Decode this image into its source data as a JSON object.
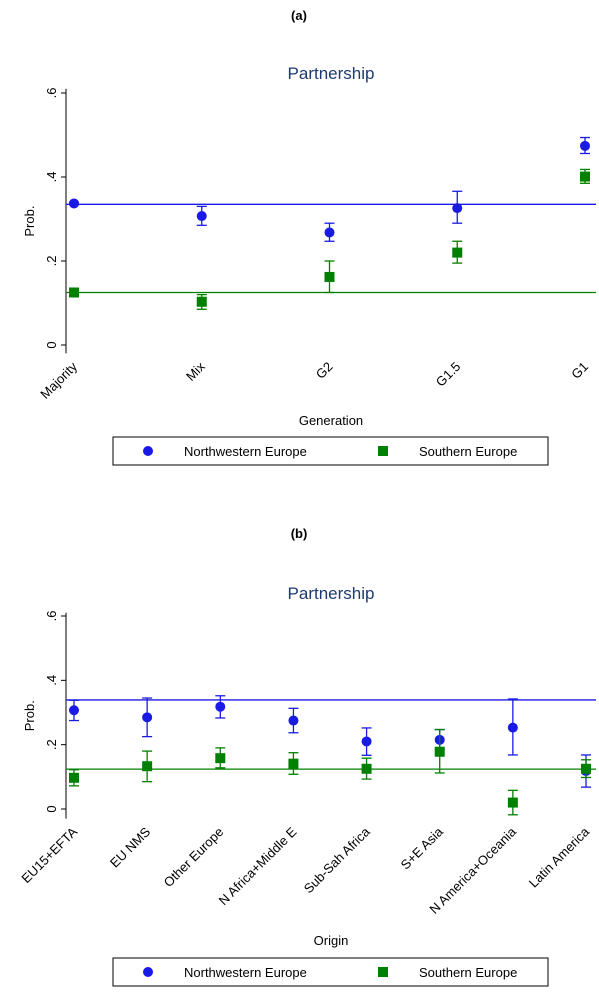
{
  "chart_data": [
    {
      "type": "errorbar",
      "panel_label": "(a)",
      "title": "Partnership",
      "x_title": "Generation",
      "y_title": "Prob.",
      "categories": [
        "Majority",
        "Mix",
        "G2",
        "G1.5",
        "G1"
      ],
      "ylim": [
        -0.02,
        0.61
      ],
      "yticks": [
        0,
        {
          "value": 0.2,
          "label": ".2"
        },
        {
          "value": 0.4,
          "label": ".4"
        },
        {
          "value": 0.6,
          "label": ".6"
        }
      ],
      "series": [
        {
          "name": "Northwestern Europe",
          "color": "#1a1ae6",
          "marker": "circle",
          "reference": 0.335,
          "values": [
            0.337,
            0.307,
            0.268,
            0.326,
            0.474
          ],
          "ci_low": [
            0.334,
            0.285,
            0.247,
            0.29,
            0.456
          ],
          "ci_high": [
            0.34,
            0.33,
            0.29,
            0.366,
            0.494
          ]
        },
        {
          "name": "Southern Europe",
          "color": "#008000",
          "marker": "square",
          "reference": 0.125,
          "values": [
            0.125,
            0.103,
            0.162,
            0.22,
            0.401
          ],
          "ci_low": [
            0.122,
            0.085,
            0.125,
            0.195,
            0.385
          ],
          "ci_high": [
            0.128,
            0.12,
            0.2,
            0.247,
            0.418
          ]
        }
      ]
    },
    {
      "type": "errorbar",
      "panel_label": "(b)",
      "title": "Partnership",
      "x_title": "Origin",
      "y_title": "Prob.",
      "categories": [
        "EU15+EFTA",
        "EU NMS",
        "Other Europe",
        "N Africa+Middle E",
        "Sub-Sah Africa",
        "S+E Asia",
        "N America+Oceania",
        "Latin America"
      ],
      "ylim": [
        -0.03,
        0.61
      ],
      "yticks": [
        0,
        {
          "value": 0.2,
          "label": ".2"
        },
        {
          "value": 0.4,
          "label": ".4"
        },
        {
          "value": 0.6,
          "label": ".6"
        }
      ],
      "series": [
        {
          "name": "Northwestern Europe",
          "color": "#1a1ae6",
          "marker": "circle",
          "reference": 0.339,
          "values": [
            0.307,
            0.285,
            0.318,
            0.275,
            0.21,
            0.215,
            0.253,
            0.118
          ],
          "ci_low": [
            0.275,
            0.225,
            0.283,
            0.237,
            0.167,
            0.185,
            0.168,
            0.068
          ],
          "ci_high": [
            0.338,
            0.345,
            0.352,
            0.313,
            0.252,
            0.247,
            0.342,
            0.168
          ]
        },
        {
          "name": "Southern Europe",
          "color": "#008000",
          "marker": "square",
          "reference": 0.124,
          "values": [
            0.097,
            0.133,
            0.158,
            0.141,
            0.125,
            0.178,
            0.02,
            0.125
          ],
          "ci_low": [
            0.072,
            0.085,
            0.128,
            0.108,
            0.093,
            0.112,
            -0.018,
            0.098
          ],
          "ci_high": [
            0.122,
            0.18,
            0.19,
            0.175,
            0.158,
            0.247,
            0.058,
            0.153
          ]
        }
      ]
    }
  ]
}
